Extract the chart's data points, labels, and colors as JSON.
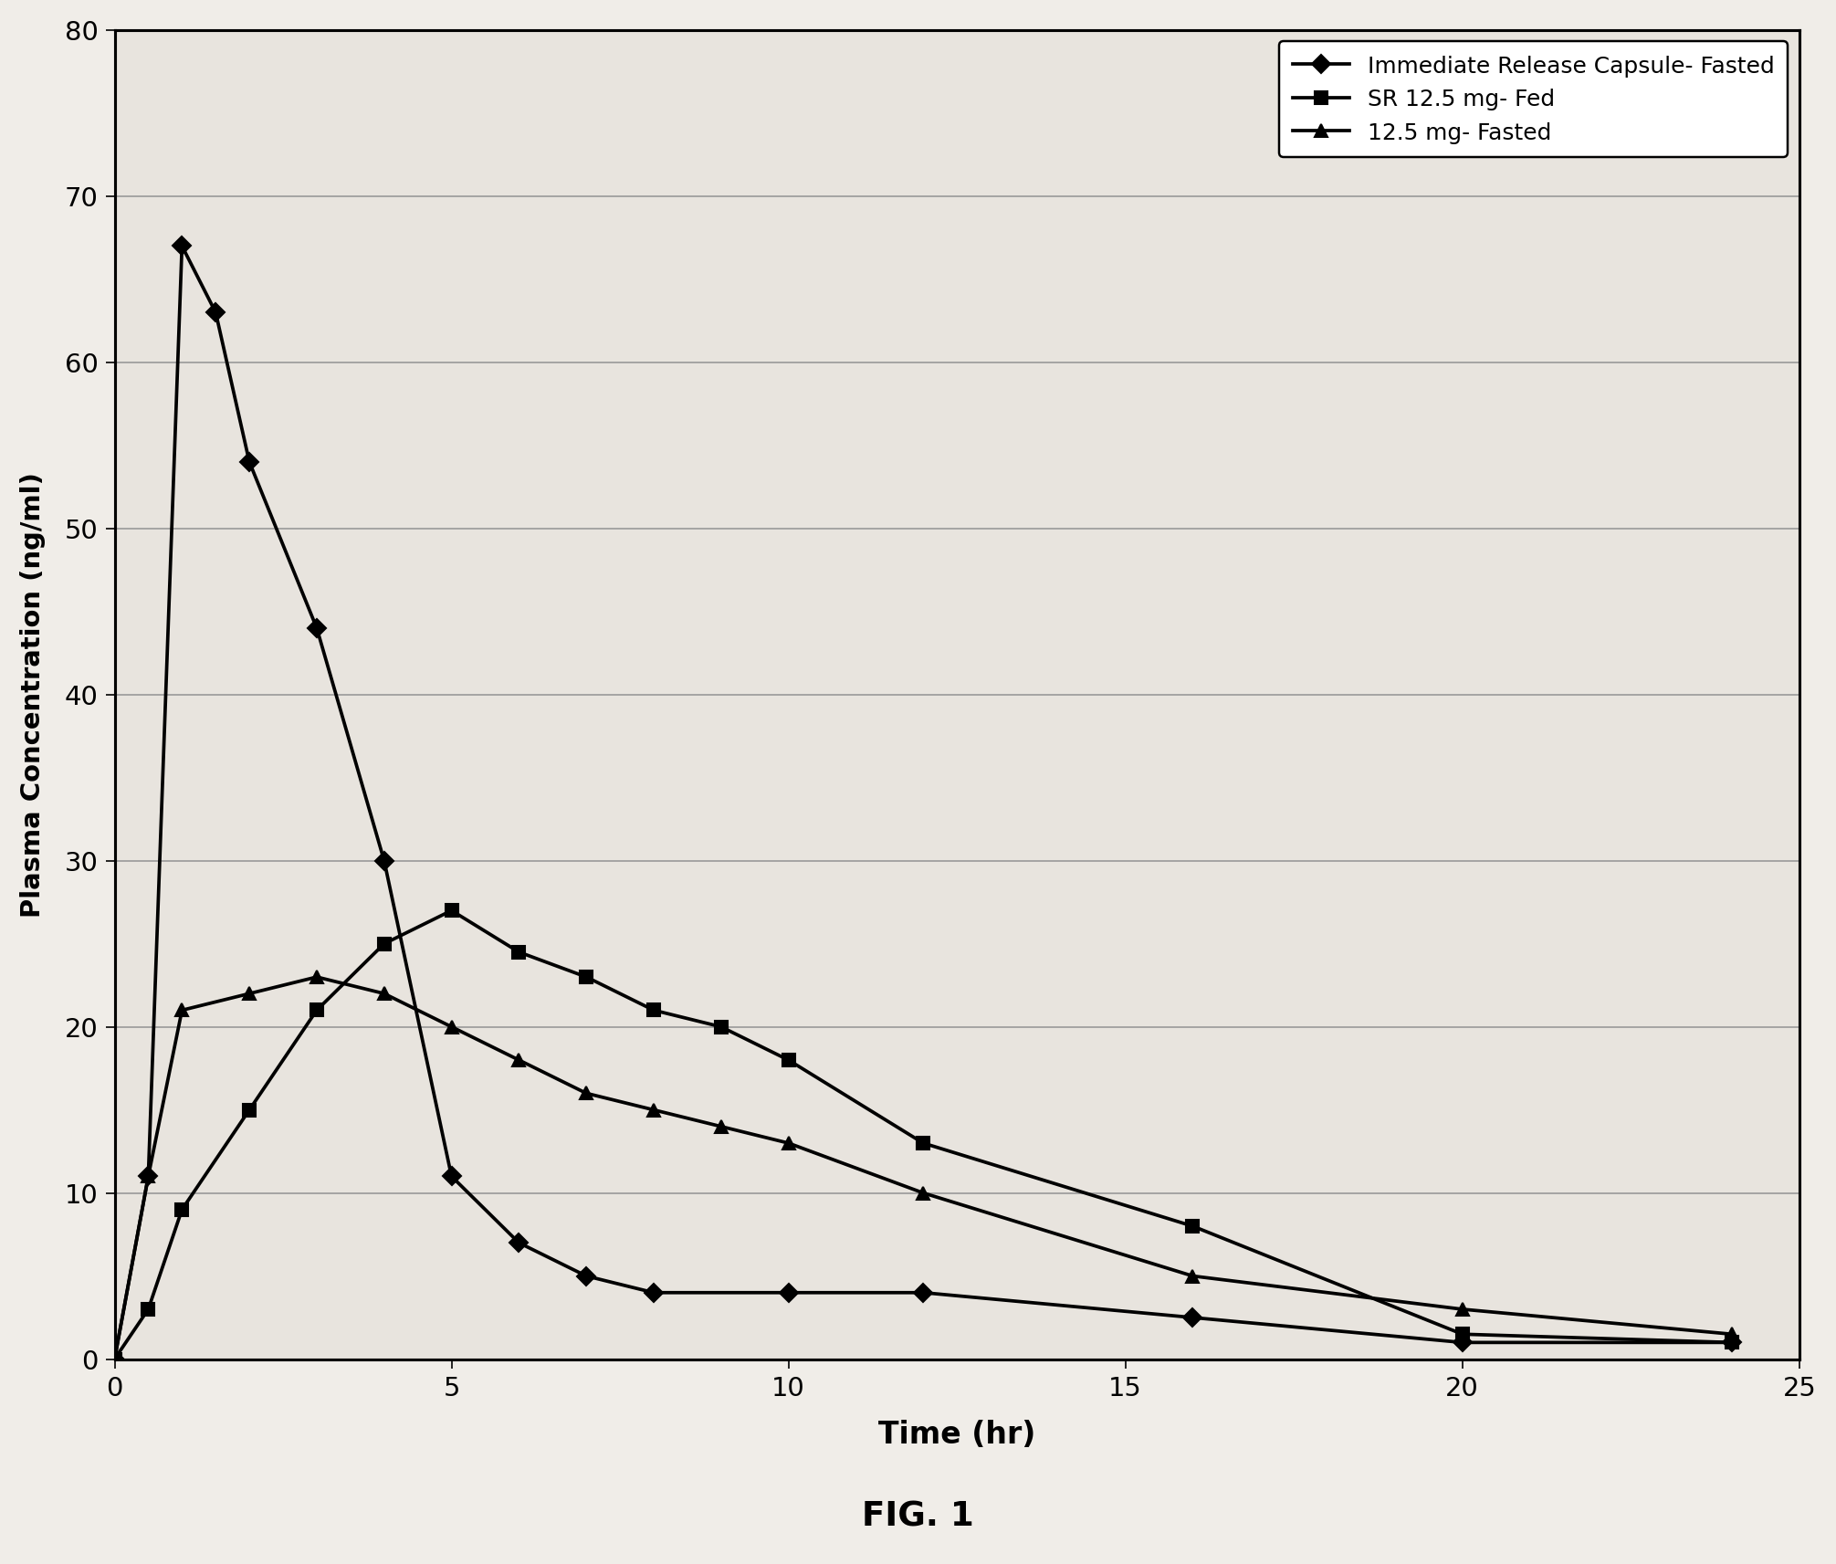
{
  "series": [
    {
      "label": "Immediate Release Capsule- Fasted",
      "x": [
        0,
        0.5,
        1,
        1.5,
        2,
        3,
        4,
        5,
        6,
        7,
        8,
        10,
        12,
        16,
        20,
        24
      ],
      "y": [
        0,
        11,
        67,
        63,
        54,
        44,
        30,
        11,
        7,
        5,
        4,
        4,
        4,
        2.5,
        1.0,
        1.0
      ],
      "marker": "D",
      "markersize": 7,
      "color": "#000000",
      "linewidth": 1.8
    },
    {
      "label": "SR 12.5 mg- Fed",
      "x": [
        0,
        0.5,
        1,
        2,
        3,
        4,
        5,
        6,
        7,
        8,
        9,
        10,
        12,
        16,
        20,
        24
      ],
      "y": [
        0,
        3,
        9,
        15,
        21,
        25,
        27,
        24.5,
        23,
        21,
        20,
        18,
        13,
        8,
        1.5,
        1.0
      ],
      "marker": "s",
      "markersize": 7,
      "color": "#000000",
      "linewidth": 1.8
    },
    {
      "label": "12.5 mg- Fasted",
      "x": [
        0,
        0.5,
        1,
        2,
        3,
        4,
        5,
        6,
        7,
        8,
        9,
        10,
        12,
        16,
        20,
        24
      ],
      "y": [
        0,
        11,
        21,
        22,
        23,
        22,
        20,
        18,
        16,
        15,
        14,
        13,
        10,
        5,
        3,
        1.5
      ],
      "marker": "^",
      "markersize": 7,
      "color": "#000000",
      "linewidth": 1.8
    }
  ],
  "xlabel": "Time (hr)",
  "ylabel": "Plasma Concentration (ng/ml)",
  "xlim": [
    0,
    25
  ],
  "ylim": [
    0,
    80
  ],
  "xticks": [
    0,
    5,
    10,
    15,
    20,
    25
  ],
  "yticks": [
    0,
    10,
    20,
    30,
    40,
    50,
    60,
    70,
    80
  ],
  "fig_title": "FIG. 1",
  "background_color": "#f0ede8",
  "plot_bg_color": "#e8e4de",
  "legend_loc": "upper right",
  "grid": true
}
